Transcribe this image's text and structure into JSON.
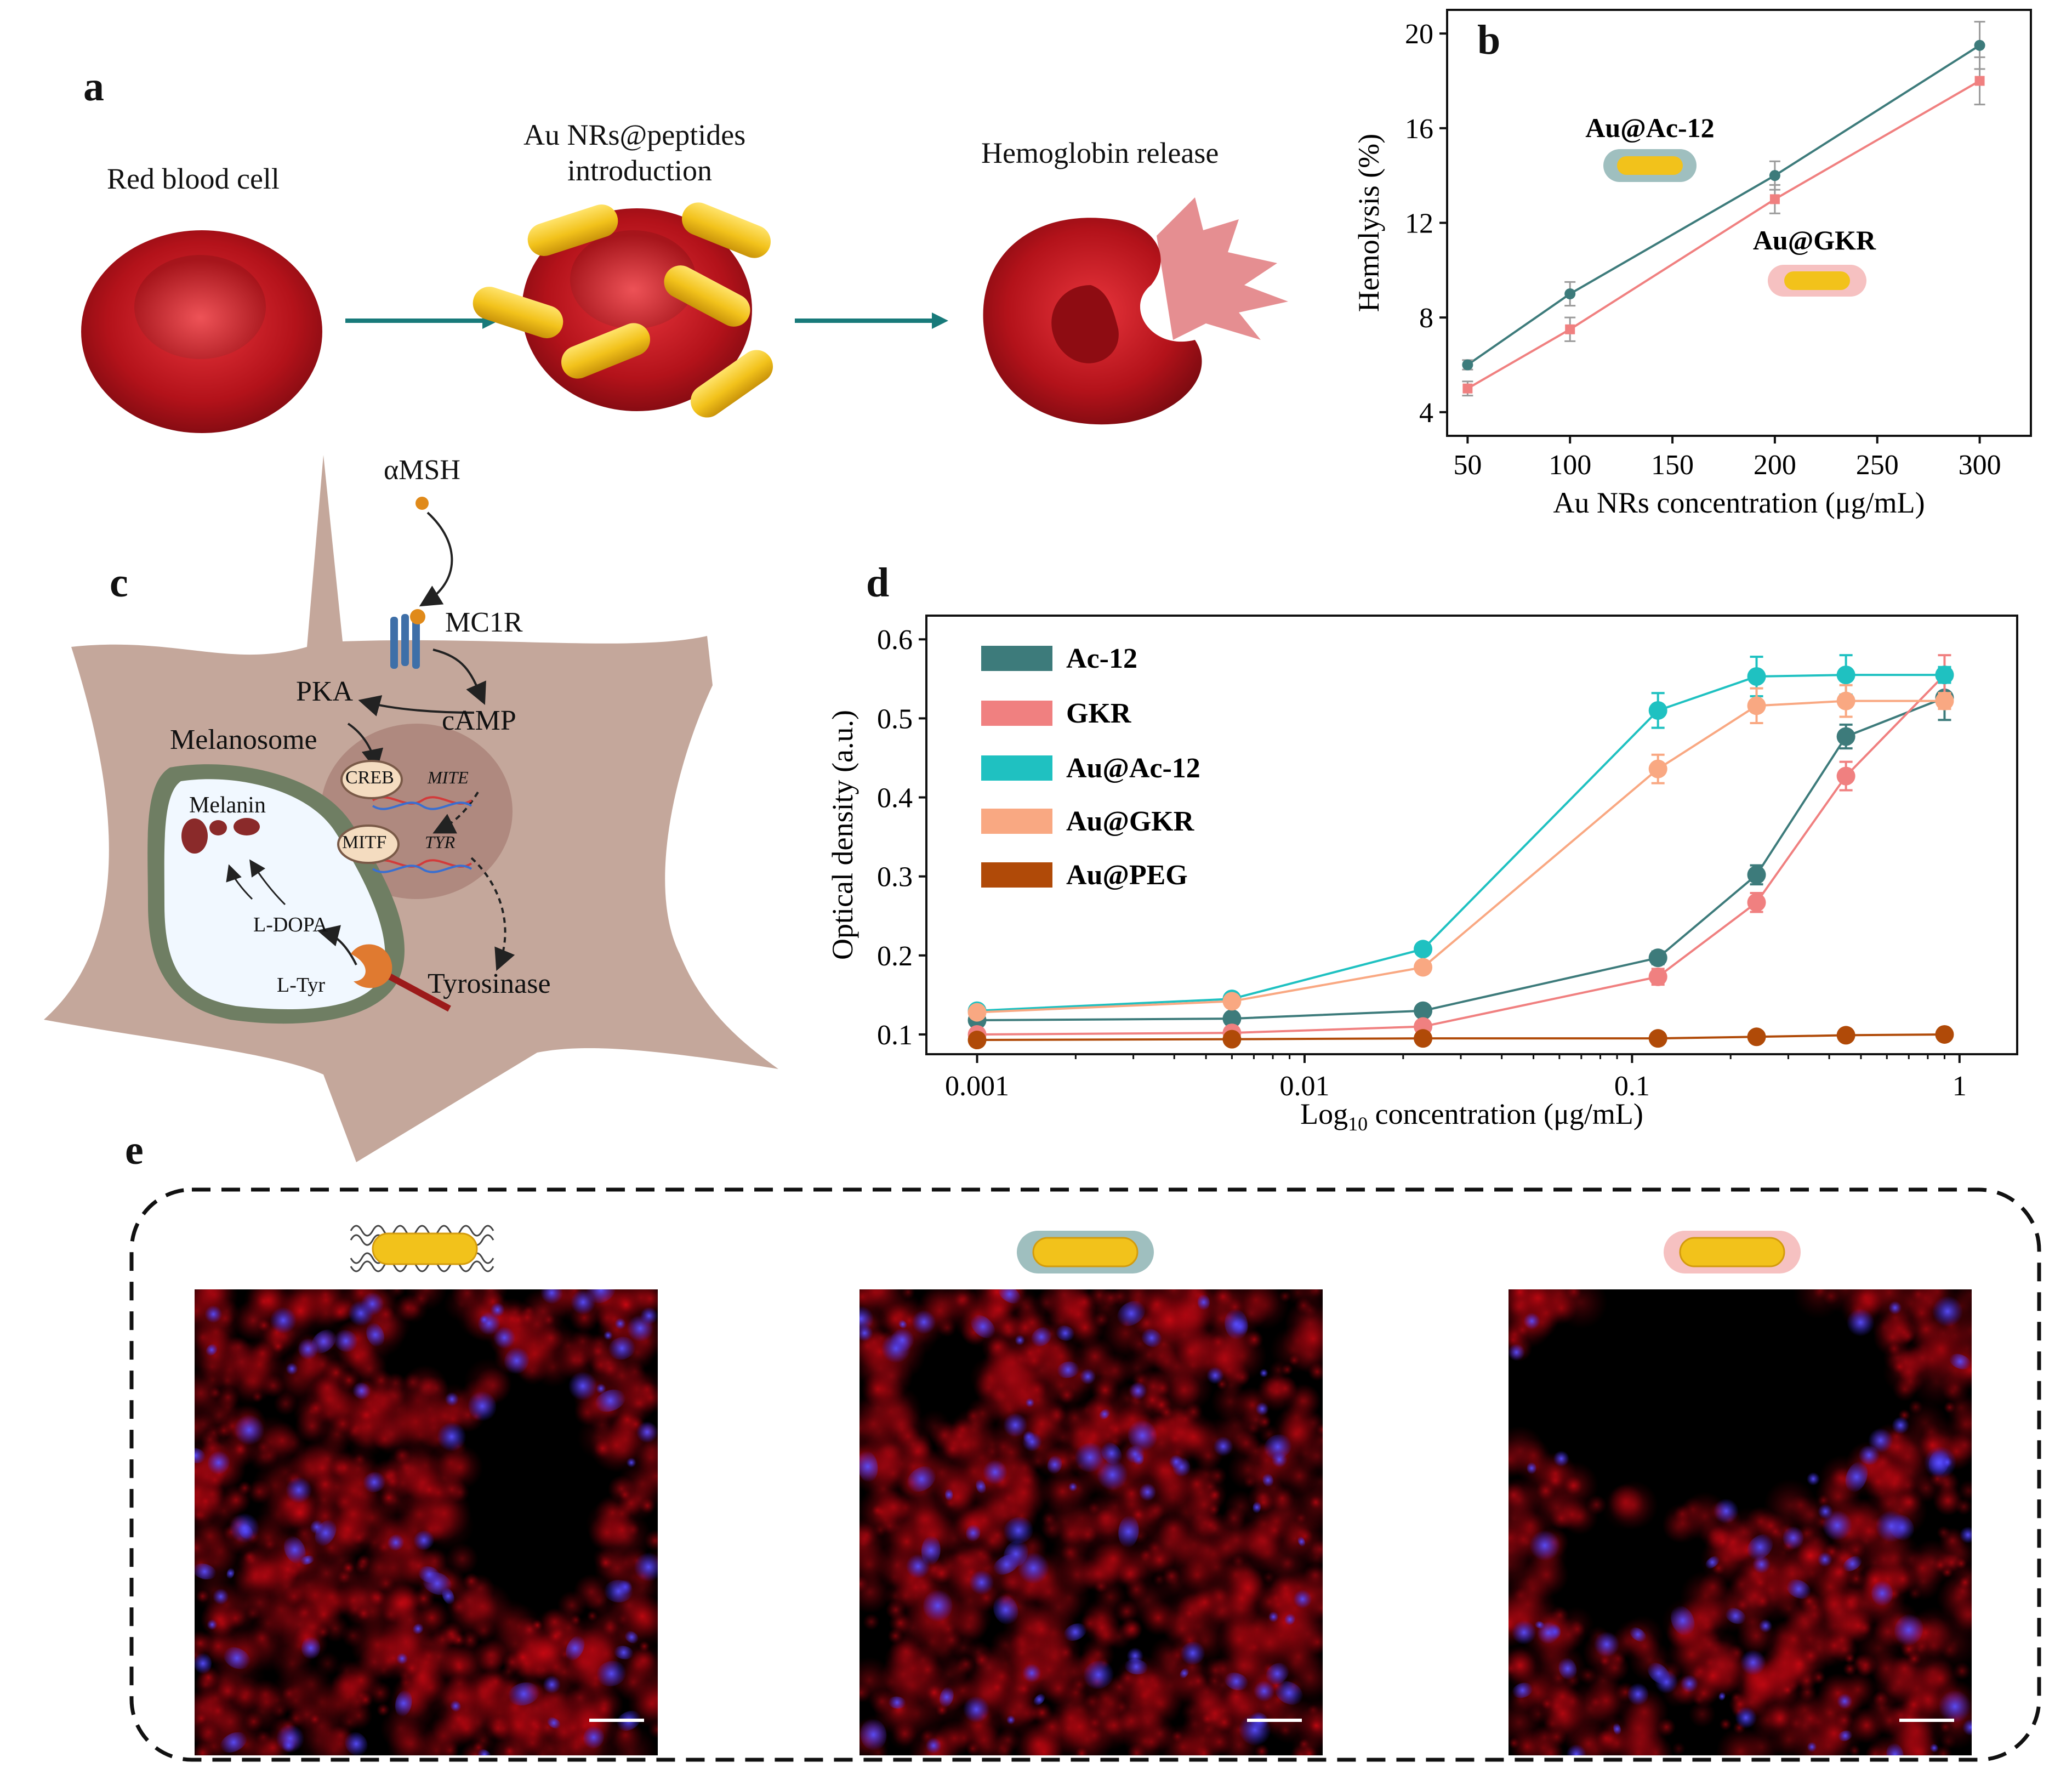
{
  "panels": {
    "a": "a",
    "b": "b",
    "c": "c",
    "d": "d",
    "e": "e"
  },
  "panel_a": {
    "label1": "Red blood cell",
    "label2_line1": "Au NRs@peptides",
    "label2_line2": "introduction",
    "label3": "Hemoglobin release"
  },
  "panel_c": {
    "alpha_msh": "αMSH",
    "mc1r": "MC1R",
    "camp": "cAMP",
    "pka": "PKA",
    "melanosome": "Melanosome",
    "melanin": "Melanin",
    "creb": "CREB",
    "mite": "MITE",
    "mitf": "MITF",
    "tyr": "TYR",
    "l_dopa": "L-DOPA",
    "l_tyr": "L-Tyr",
    "tyrosinase": "Tyrosinase"
  },
  "panel_b_labels": {
    "ac12": "Au@Ac-12",
    "gkr": "Au@GKR"
  },
  "panel_e": {
    "panels": 3
  },
  "colors": {
    "rbc": "#b3121a",
    "gold": "#f2c21b",
    "teal": "#187a7a",
    "ac12": "#3d7b7b",
    "gkr": "#f08080",
    "au_ac12": "#1fc1c1",
    "au_gkr": "#f9a882",
    "au_peg": "#b04a08",
    "cell": "#c4a79b"
  },
  "chart_data": [
    {
      "id": "b",
      "type": "line",
      "xlabel": "Au NRs concentration (μg/mL)",
      "ylabel": "Hemolysis (%)",
      "x": [
        50,
        100,
        200,
        300
      ],
      "xlim": [
        40,
        325
      ],
      "ylim": [
        3,
        21
      ],
      "xticks": [
        50,
        100,
        150,
        200,
        250,
        300
      ],
      "yticks": [
        4,
        8,
        12,
        16,
        20
      ],
      "series": [
        {
          "name": "Au@Ac-12",
          "color": "#3d7b7b",
          "values": [
            6.0,
            9.0,
            14.0,
            19.5
          ],
          "err": [
            0.2,
            0.5,
            0.6,
            1.0
          ]
        },
        {
          "name": "Au@GKR",
          "color": "#f08080",
          "values": [
            5.0,
            7.5,
            13.0,
            18.0
          ],
          "err": [
            0.3,
            0.5,
            0.6,
            1.0
          ]
        }
      ]
    },
    {
      "id": "d",
      "type": "line",
      "xlabel": "Log10 concentration (μg/mL)",
      "xlabel_main": "Log",
      "xlabel_sub": "10",
      "xlabel_rest": " concentration (μg/mL)",
      "ylabel": "Optical density (a.u.)",
      "x_scale": "log",
      "xlim": [
        0.0007,
        1.5
      ],
      "ylim": [
        0.075,
        0.63
      ],
      "xticks": [
        0.001,
        0.01,
        0.1,
        1
      ],
      "xtick_labels": [
        "0.001",
        "0.01",
        "0.1",
        "1"
      ],
      "yticks": [
        0.1,
        0.2,
        0.3,
        0.4,
        0.5,
        0.6
      ],
      "x": [
        0.001,
        0.006,
        0.023,
        0.12,
        0.24,
        0.45,
        0.9
      ],
      "series": [
        {
          "name": "Ac-12",
          "color": "#3d7b7b",
          "values": [
            0.118,
            0.12,
            0.13,
            0.197,
            0.302,
            0.477,
            0.526
          ],
          "err": [
            0.005,
            0.005,
            0.006,
            0.008,
            0.012,
            0.015,
            0.028
          ]
        },
        {
          "name": "GKR",
          "color": "#f08080",
          "values": [
            0.1,
            0.102,
            0.11,
            0.173,
            0.267,
            0.427,
            0.555
          ],
          "err": [
            0.005,
            0.005,
            0.006,
            0.01,
            0.012,
            0.018,
            0.025
          ]
        },
        {
          "name": "Au@Ac-12",
          "color": "#1fc1c1",
          "values": [
            0.13,
            0.145,
            0.208,
            0.51,
            0.553,
            0.555,
            0.555
          ],
          "err": [
            0.005,
            0.005,
            0.006,
            0.022,
            0.025,
            0.025,
            0.01
          ]
        },
        {
          "name": "Au@GKR",
          "color": "#f9a882",
          "values": [
            0.128,
            0.142,
            0.185,
            0.436,
            0.516,
            0.522,
            0.522
          ],
          "err": [
            0.005,
            0.005,
            0.006,
            0.018,
            0.022,
            0.02,
            0.01
          ]
        },
        {
          "name": "Au@PEG",
          "color": "#b04a08",
          "values": [
            0.093,
            0.094,
            0.095,
            0.095,
            0.097,
            0.099,
            0.1
          ],
          "err": [
            0.004,
            0.004,
            0.004,
            0.005,
            0.005,
            0.005,
            0.005
          ]
        }
      ]
    }
  ]
}
